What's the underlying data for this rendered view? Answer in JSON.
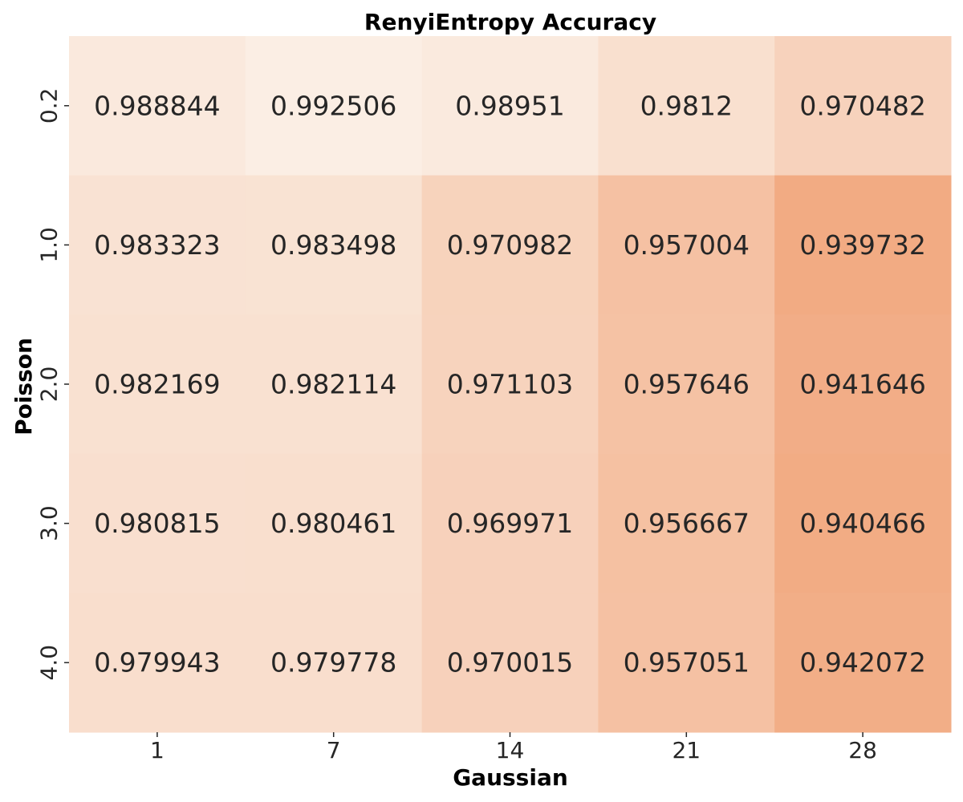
{
  "chart_data": {
    "type": "heatmap",
    "title": "RenyiEntropy Accuracy",
    "xlabel": "Gaussian",
    "ylabel": "Poisson",
    "x_categories": [
      "1",
      "7",
      "14",
      "21",
      "28"
    ],
    "y_categories": [
      "0.2",
      "1.0",
      "2.0",
      "3.0",
      "4.0"
    ],
    "values": [
      [
        0.988844,
        0.992506,
        0.98951,
        0.9812,
        0.970482
      ],
      [
        0.983323,
        0.983498,
        0.970982,
        0.957004,
        0.939732
      ],
      [
        0.982169,
        0.982114,
        0.971103,
        0.957646,
        0.941646
      ],
      [
        0.980815,
        0.980461,
        0.969971,
        0.956667,
        0.940466
      ],
      [
        0.979943,
        0.979778,
        0.970015,
        0.957051,
        0.942072
      ]
    ],
    "value_labels": [
      [
        "0.988844",
        "0.992506",
        "0.98951",
        "0.9812",
        "0.970482"
      ],
      [
        "0.983323",
        "0.983498",
        "0.970982",
        "0.957004",
        "0.939732"
      ],
      [
        "0.982169",
        "0.982114",
        "0.971103",
        "0.957646",
        "0.941646"
      ],
      [
        "0.980815",
        "0.980461",
        "0.969971",
        "0.956667",
        "0.940466"
      ],
      [
        "0.979943",
        "0.979778",
        "0.970015",
        "0.957051",
        "0.942072"
      ]
    ],
    "colormap": {
      "low_color": "#f2ab83",
      "high_color": "#fbeee4"
    },
    "colorbar": false,
    "grid": false
  }
}
